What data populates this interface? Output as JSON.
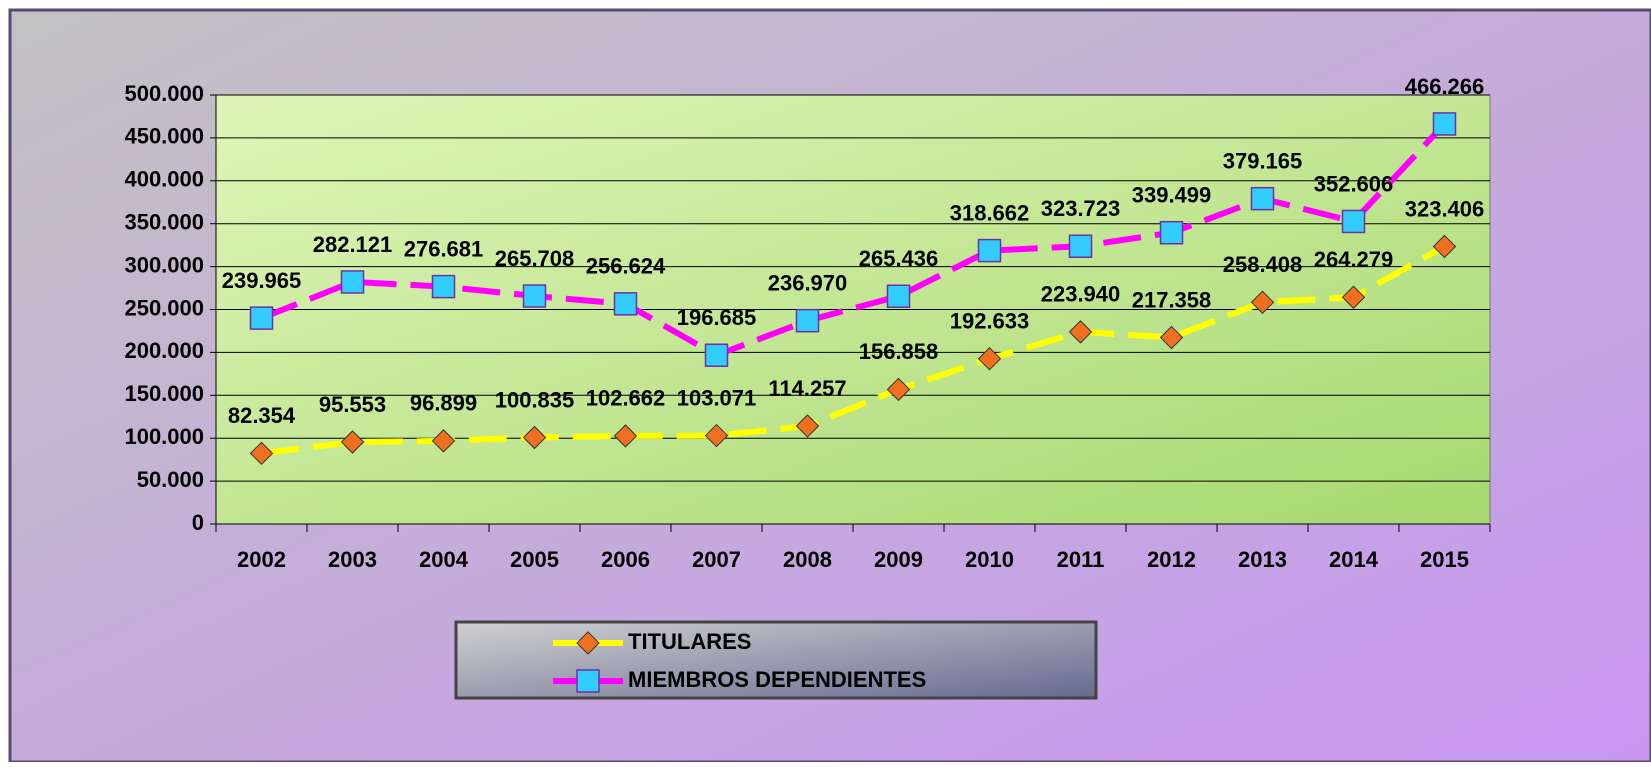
{
  "chart_data": {
    "type": "line",
    "categories": [
      "2002",
      "2003",
      "2004",
      "2005",
      "2006",
      "2007",
      "2008",
      "2009",
      "2010",
      "2011",
      "2012",
      "2013",
      "2014",
      "2015"
    ],
    "series": [
      {
        "name": "TITULARES",
        "color": "#ffff00",
        "marker": "diamond",
        "marker_color": "#f07020",
        "values": [
          82354,
          95553,
          96899,
          100835,
          102662,
          103071,
          114257,
          156858,
          192633,
          223940,
          217358,
          258408,
          264279,
          323406
        ],
        "value_labels": [
          "82.354",
          "95.553",
          "96.899",
          "100.835",
          "102.662",
          "103.071",
          "114.257",
          "156.858",
          "192.633",
          "223.940",
          "217.358",
          "258.408",
          "264.279",
          "323.406"
        ]
      },
      {
        "name": "MIEMBROS DEPENDIENTES",
        "color": "#ff00ff",
        "marker": "square",
        "marker_color": "#33ccff",
        "values": [
          239965,
          282121,
          276681,
          265708,
          256624,
          196685,
          236970,
          265436,
          318662,
          323723,
          339499,
          379165,
          352606,
          466266
        ],
        "value_labels": [
          "239.965",
          "282.121",
          "276.681",
          "265.708",
          "256.624",
          "196.685",
          "236.970",
          "265.436",
          "318.662",
          "323.723",
          "339.499",
          "379.165",
          "352.606",
          "466.266"
        ]
      }
    ],
    "ylim": [
      0,
      500000
    ],
    "yticks": [
      0,
      {
        "value": 50000,
        "label": "50.000"
      },
      {
        "value": 100000,
        "label": "100.000"
      },
      {
        "value": 150000,
        "label": "150.000"
      },
      {
        "value": 200000,
        "label": "200.000"
      },
      {
        "value": 250000,
        "label": "250.000"
      },
      {
        "value": 300000,
        "label": "300.000"
      },
      {
        "value": 350000,
        "label": "350.000"
      },
      {
        "value": 400000,
        "label": "400.000"
      },
      {
        "value": 450000,
        "label": "450.000"
      },
      {
        "value": 500000,
        "label": "500.000"
      }
    ],
    "grid": true,
    "legend": "bottom"
  }
}
